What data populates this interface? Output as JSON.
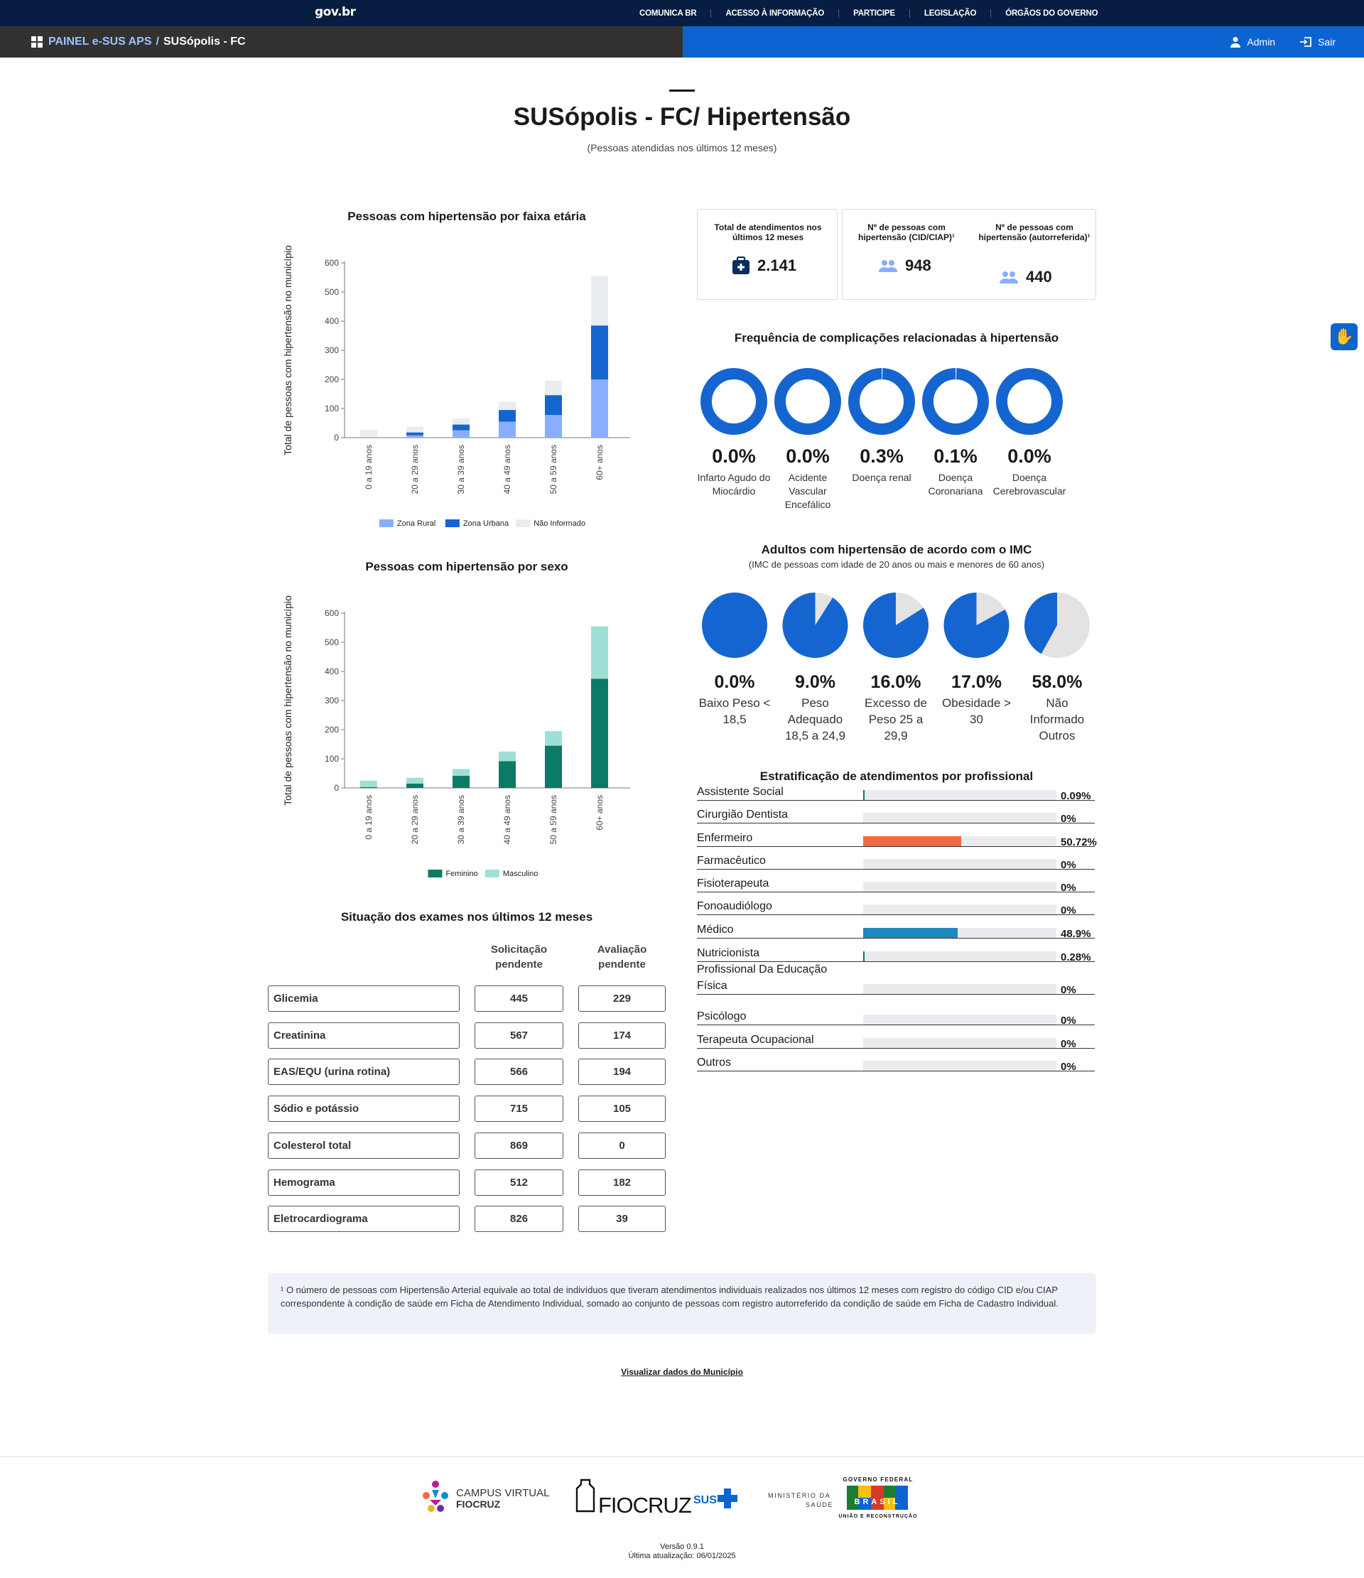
{
  "gov_bar": {
    "logo": "gov.br",
    "links": [
      "COMUNICA BR",
      "ACESSO À INFORMAÇÃO",
      "PARTICIPE",
      "LEGISLAÇÃO",
      "ÓRGÃOS DO GOVERNO"
    ]
  },
  "nav": {
    "app": "PAINEL e-SUS APS",
    "sep": "/",
    "place": "SUSópolis - FC",
    "admin": "Admin",
    "logout": "Sair"
  },
  "page": {
    "title": "SUSópolis - FC/ Hipertensão",
    "subtitle": "(Pessoas atendidas nos últimos 12 meses)"
  },
  "kpis": {
    "atendimentos_label": "Total de atendimentos nos últimos 12 meses",
    "atendimentos_value": "2.141",
    "cid_label": "Nº de pessoas com hipertensão (CID/CIAP)¹",
    "cid_value": "948",
    "auto_label": "Nº de pessoas com hipertensão (autorreferida)¹",
    "auto_value": "440"
  },
  "chart_age": {
    "title": "Pessoas com hipertensão por faixa etária",
    "ylabel": "Total de pessoas com hipertensão no município",
    "yticks": [
      "0",
      "100",
      "200",
      "300",
      "400",
      "500",
      "600"
    ],
    "legend": [
      "Zona Rural",
      "Zona Urbana",
      "Não Informado"
    ]
  },
  "chart_sex": {
    "title": "Pessoas com hipertensão por sexo",
    "ylabel": "Total de pessoas com hipertensão no município",
    "yticks": [
      "0",
      "100",
      "200",
      "300",
      "400",
      "500",
      "600"
    ],
    "legend": [
      "Feminino",
      "Masculino"
    ]
  },
  "chart_data": [
    {
      "type": "bar",
      "stacked": true,
      "title": "Pessoas com hipertensão por faixa etária",
      "ylabel": "Total de pessoas com hipertensão no município",
      "ylim": [
        0,
        600
      ],
      "categories": [
        "0 a 19 anos",
        "20 a 29 anos",
        "30 a 39 anos",
        "40 a 49 anos",
        "50 a 59 anos",
        "60+ anos"
      ],
      "series": [
        {
          "name": "Zona Rural",
          "color": "#8aaeff",
          "values": [
            2,
            8,
            25,
            55,
            78,
            200
          ]
        },
        {
          "name": "Zona Urbana",
          "color": "#1565d0",
          "values": [
            0,
            10,
            20,
            40,
            68,
            185
          ]
        },
        {
          "name": "Não Informado",
          "color": "#e9ecf1",
          "values": [
            25,
            20,
            22,
            28,
            50,
            170
          ]
        }
      ]
    },
    {
      "type": "bar",
      "stacked": true,
      "title": "Pessoas com hipertensão por sexo",
      "ylabel": "Total de pessoas com hipertensão no município",
      "ylim": [
        0,
        600
      ],
      "categories": [
        "0 a 19 anos",
        "20 a 29 anos",
        "30 a 39 anos",
        "40 a 49 anos",
        "50 a 59 anos",
        "60+ anos"
      ],
      "series": [
        {
          "name": "Feminino",
          "color": "#0b7a67",
          "values": [
            3,
            15,
            42,
            92,
            145,
            375
          ]
        },
        {
          "name": "Masculino",
          "color": "#9fe0d6",
          "values": [
            22,
            20,
            23,
            33,
            50,
            180
          ]
        }
      ]
    }
  ],
  "complications": {
    "title": "Frequência de complicações relacionadas à hipertensão",
    "items": [
      {
        "pct": "0.0%",
        "label": "Infarto Agudo do Miocárdio",
        "value": 0.0
      },
      {
        "pct": "0.0%",
        "label": "Acidente Vascular Encefálico",
        "value": 0.0
      },
      {
        "pct": "0.3%",
        "label": "Doença renal",
        "value": 0.3
      },
      {
        "pct": "0.1%",
        "label": "Doença Coronariana",
        "value": 0.1
      },
      {
        "pct": "0.0%",
        "label": "Doença Cerebrovascular",
        "value": 0.0
      }
    ]
  },
  "imc": {
    "title": "Adultos com hipertensão de acordo com o IMC",
    "subtitle": "(IMC de pessoas com idade de 20 anos ou mais e menores de 60 anos)",
    "items": [
      {
        "pct": "0.0%",
        "label": "Baixo Peso < 18,5",
        "value": 0.0
      },
      {
        "pct": "9.0%",
        "label": "Peso Adequado 18,5 a 24,9",
        "value": 9.0
      },
      {
        "pct": "16.0%",
        "label": "Excesso de Peso 25 a 29,9",
        "value": 16.0
      },
      {
        "pct": "17.0%",
        "label": "Obesidade > 30",
        "value": 17.0
      },
      {
        "pct": "58.0%",
        "label": "Não Informado Outros",
        "value": 58.0
      }
    ]
  },
  "professionals": {
    "title": "Estratificação de atendimentos por profissional",
    "items": [
      {
        "name": "Assistente Social",
        "pct": "0.09%",
        "value": 0.09,
        "color": "#0b7a67"
      },
      {
        "name": "Cirurgião Dentista",
        "pct": "0%",
        "value": 0,
        "color": "#1f88bd"
      },
      {
        "name": "Enfermeiro",
        "pct": "50.72%",
        "value": 50.72,
        "color": "#f26b3f"
      },
      {
        "name": "Farmacêutico",
        "pct": "0%",
        "value": 0,
        "color": "#1f88bd"
      },
      {
        "name": "Fisioterapeuta",
        "pct": "0%",
        "value": 0,
        "color": "#1f88bd"
      },
      {
        "name": "Fonoaudiólogo",
        "pct": "0%",
        "value": 0,
        "color": "#1f88bd"
      },
      {
        "name": "Médico",
        "pct": "48.9%",
        "value": 48.9,
        "color": "#1f88bd"
      },
      {
        "name": "Nutricionista",
        "pct": "0.28%",
        "value": 0.28,
        "color": "#0b7a67"
      },
      {
        "name": "Profissional Da Educação Física",
        "pct": "0%",
        "value": 0,
        "color": "#1f88bd"
      },
      {
        "name": "Psicólogo",
        "pct": "0%",
        "value": 0,
        "color": "#1f88bd"
      },
      {
        "name": "Terapeuta Ocupacional",
        "pct": "0%",
        "value": 0,
        "color": "#1f88bd"
      },
      {
        "name": "Outros",
        "pct": "0%",
        "value": 0,
        "color": "#1f88bd"
      }
    ]
  },
  "exams": {
    "title": "Situação dos exames nos últimos 12 meses",
    "col1": "Solicitação pendente",
    "col2": "Avaliação pendente",
    "rows": [
      {
        "name": "Glicemia",
        "solic": "445",
        "aval": "229"
      },
      {
        "name": "Creatinina",
        "solic": "567",
        "aval": "174"
      },
      {
        "name": "EAS/EQU (urina rotina)",
        "solic": "566",
        "aval": "194"
      },
      {
        "name": "Sódio e potássio",
        "solic": "715",
        "aval": "105"
      },
      {
        "name": "Colesterol total",
        "solic": "869",
        "aval": "0"
      },
      {
        "name": "Hemograma",
        "solic": "512",
        "aval": "182"
      },
      {
        "name": "Eletrocardiograma",
        "solic": "826",
        "aval": "39"
      }
    ]
  },
  "note": "¹ O número de pessoas com Hipertensão Arterial equivale ao total de indivíduos que tiveram atendimentos individuais realizados nos últimos 12 meses com registro do código CID e/ou CIAP correspondente à condição de saúde em Ficha de Atendimento Individual, somado ao conjunto de pessoas com registro autorreferido da condição de saúde em Ficha de Cadastro Individual.",
  "link_municipio": "Visualizar dados do Município",
  "footer": {
    "logo1_a": "CAMPUS VIRTUAL",
    "logo1_b": "FIOCRUZ",
    "logo2": "FIOCRUZ",
    "logo3": "SUS",
    "logo4_a": "MINISTÉRIO DA",
    "logo4_b": "SAÚDE",
    "logo5_top": "GOVERNO FEDERAL",
    "logo5_main": "BRASIL",
    "logo5_bottom": "UNIÃO E RECONSTRUÇÃO",
    "version": "Versão 0.9.1",
    "updated": "Última atualização: 06/01/2025"
  }
}
